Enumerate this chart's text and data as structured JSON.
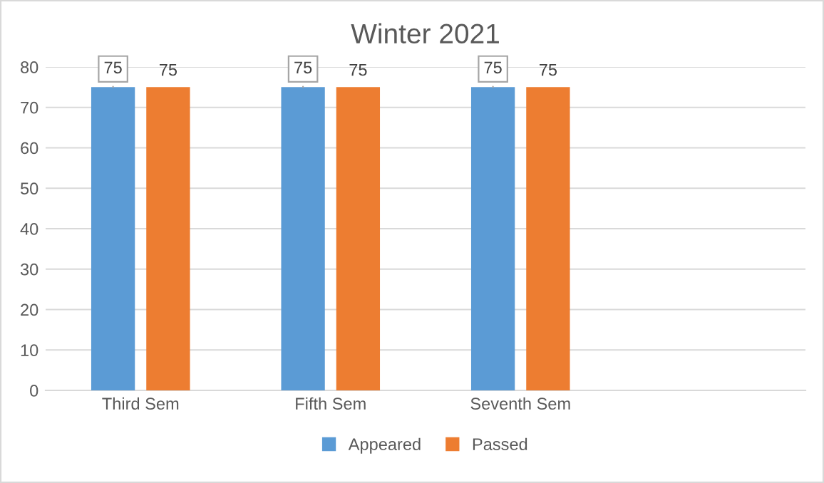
{
  "chart_data": {
    "type": "bar",
    "title": "Winter 2021",
    "categories": [
      "Third Sem",
      "Fifth Sem",
      "Seventh Sem",
      null
    ],
    "series": [
      {
        "name": "Appeared",
        "color": "#5b9bd5",
        "values": [
          75,
          75,
          75,
          null
        ]
      },
      {
        "name": "Passed",
        "color": "#ed7d31",
        "values": [
          75,
          75,
          75,
          null
        ]
      }
    ],
    "ylim": [
      0,
      80
    ],
    "yticks": [
      0,
      10,
      20,
      30,
      40,
      50,
      60,
      70,
      80
    ],
    "grid": "y",
    "legend": "bottom",
    "data_labels": true
  }
}
